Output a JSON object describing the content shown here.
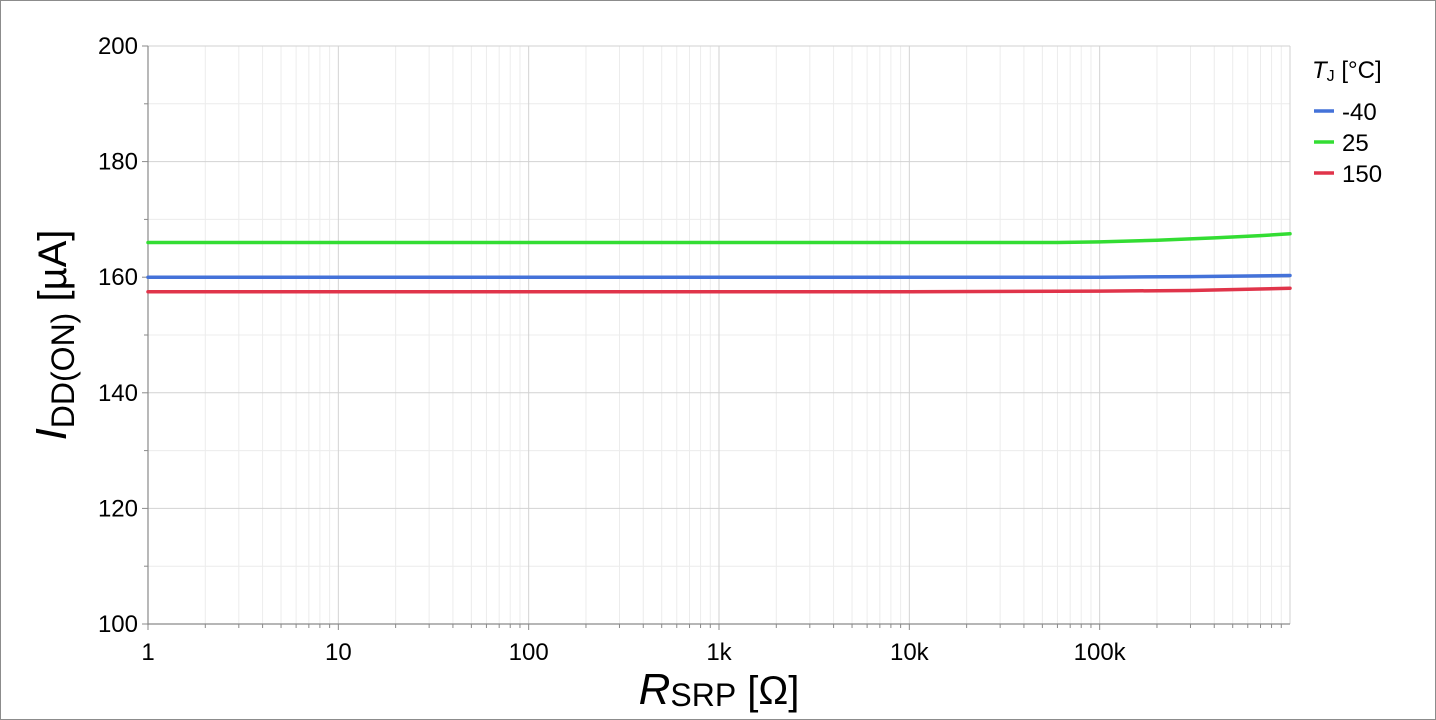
{
  "chart_data": {
    "type": "line",
    "x_scale": "log",
    "xlim": [
      1,
      1000000
    ],
    "ylim": [
      100,
      200
    ],
    "grid": true,
    "legend_position": "right",
    "x_ticks": [
      {
        "value": 1,
        "label": "1"
      },
      {
        "value": 10,
        "label": "10"
      },
      {
        "value": 100,
        "label": "100"
      },
      {
        "value": 1000,
        "label": "1k"
      },
      {
        "value": 10000,
        "label": "10k"
      },
      {
        "value": 100000,
        "label": "100k"
      }
    ],
    "y_ticks": [
      100,
      120,
      140,
      160,
      180,
      200
    ],
    "xlabel": {
      "symbol": "R",
      "subscript": "SRP",
      "unit": " [Ω]"
    },
    "ylabel": {
      "symbol": "I",
      "subscript": "DD(ON)",
      "unit": " [µA]"
    },
    "legend_title": {
      "symbol": "T",
      "subscript": "J",
      "unit": " [°C]"
    },
    "series": [
      {
        "name": "-40",
        "color": "#4472d9",
        "x": [
          1,
          10,
          100,
          1000,
          10000,
          100000,
          300000,
          1000000
        ],
        "y": [
          160,
          160,
          160,
          160,
          160,
          160,
          160.1,
          160.3
        ]
      },
      {
        "name": "25",
        "color": "#33dd33",
        "x": [
          1,
          10,
          100,
          1000,
          10000,
          60000,
          100000,
          200000,
          400000,
          700000,
          1000000
        ],
        "y": [
          166,
          166,
          166,
          166,
          166,
          166,
          166.1,
          166.4,
          166.8,
          167.2,
          167.5
        ]
      },
      {
        "name": "150",
        "color": "#e0344a",
        "x": [
          1,
          10,
          100,
          1000,
          10000,
          100000,
          300000,
          600000,
          1000000
        ],
        "y": [
          157.5,
          157.5,
          157.5,
          157.5,
          157.5,
          157.6,
          157.7,
          157.9,
          158.1
        ]
      }
    ]
  }
}
